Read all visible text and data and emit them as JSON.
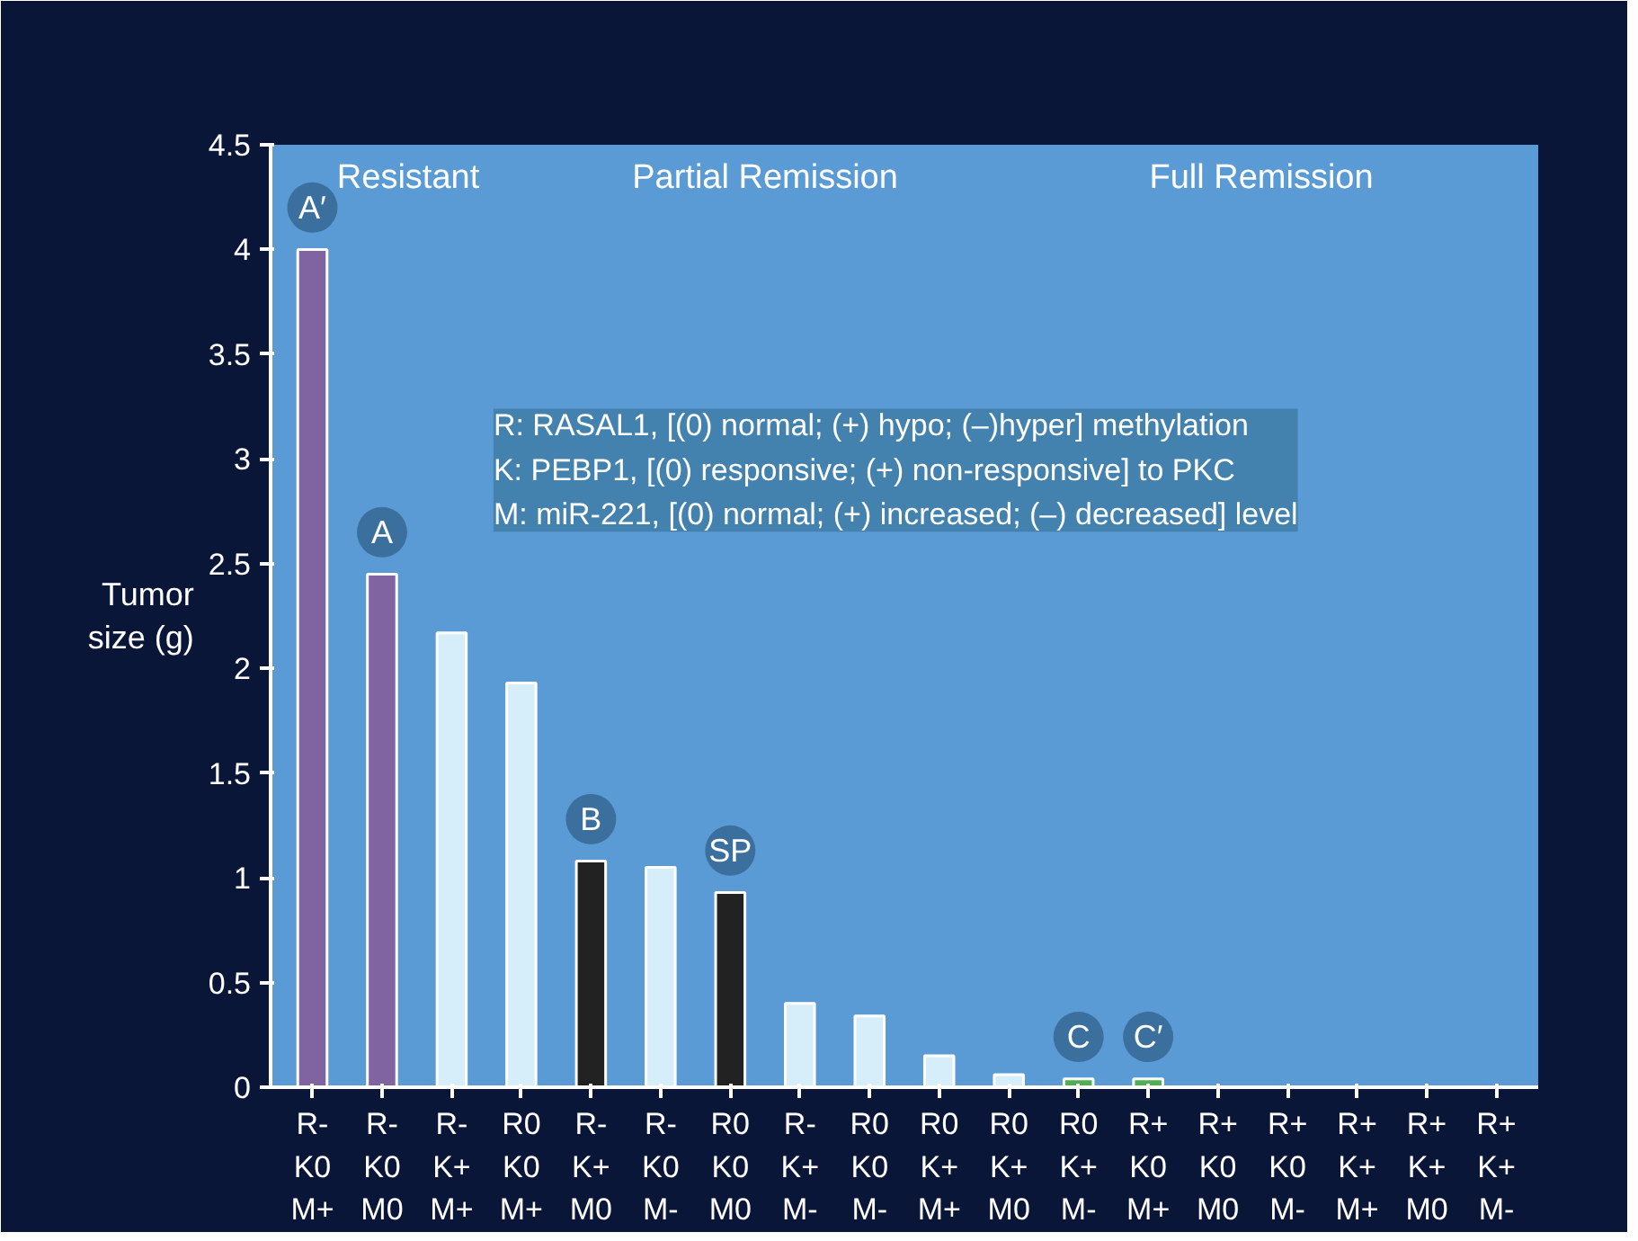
{
  "chart_data": {
    "type": "bar",
    "ylabel": "Tumor\nsize (g)",
    "categories": [
      "R-\nK0\nM+",
      "R-\nK0\nM0",
      "R-\nK+\nM+",
      "R0\nK0\nM+",
      "R-\nK+\nM0",
      "R-\nK0\nM-",
      "R0\nK0\nM0",
      "R-\nK+\nM-",
      "R0\nK0\nM-",
      "R0\nK+\nM+",
      "R0\nK+\nM0",
      "R0\nK+\nM-",
      "R+\nK0\nM+",
      "R+\nK0\nM0",
      "R+\nK0\nM-",
      "R+\nK+\nM+",
      "R+\nK+\nM0",
      "R+\nK+\nM-"
    ],
    "values": [
      4.0,
      2.45,
      2.17,
      1.93,
      1.08,
      1.05,
      0.93,
      0.4,
      0.34,
      0.15,
      0.06,
      0.04,
      0.04,
      0,
      0,
      0,
      0,
      0
    ],
    "colors": [
      "#8064a2",
      "#8064a2",
      "#d6eefa",
      "#d6eefa",
      "#222222",
      "#d6eefa",
      "#222222",
      "#d6eefa",
      "#d6eefa",
      "#d6eefa",
      "#d6eefa",
      "#4caf50",
      "#4caf50",
      "#d6eefa",
      "#d6eefa",
      "#d6eefa",
      "#d6eefa",
      "#d6eefa"
    ],
    "ylim": [
      0,
      4.5
    ],
    "yticks": [
      0,
      0.5,
      1,
      1.5,
      2,
      2.5,
      3,
      3.5,
      4,
      4.5
    ],
    "grid": false,
    "annotations": [
      "Resistant",
      "Partial Remission",
      "Full Remission",
      "R: RASAL1, [(0) normal; (+) hypo; (–)hyper] methylation\nK: PEBP1, [(0) responsive; (+) non-responsive] to PKC\nM: miR-221, [(0) normal; (+) increased; (–) decreased] level",
      {
        "text": "A′",
        "x": "R-\nK0\nM+",
        "y": 4.0
      },
      {
        "text": "A",
        "x": "R-\nK0\nM0",
        "y": 2.45
      },
      {
        "text": "B",
        "x": "R-\nK+\nM0",
        "y": 1.08
      },
      {
        "text": "SP",
        "x": "R0\nK0\nM0",
        "y": 0.93
      },
      {
        "text": "C",
        "x": "R0\nK+\nM-",
        "y": 0.04
      },
      {
        "text": "C′",
        "x": "R+\nK0\nM+",
        "y": 0.04
      }
    ]
  }
}
